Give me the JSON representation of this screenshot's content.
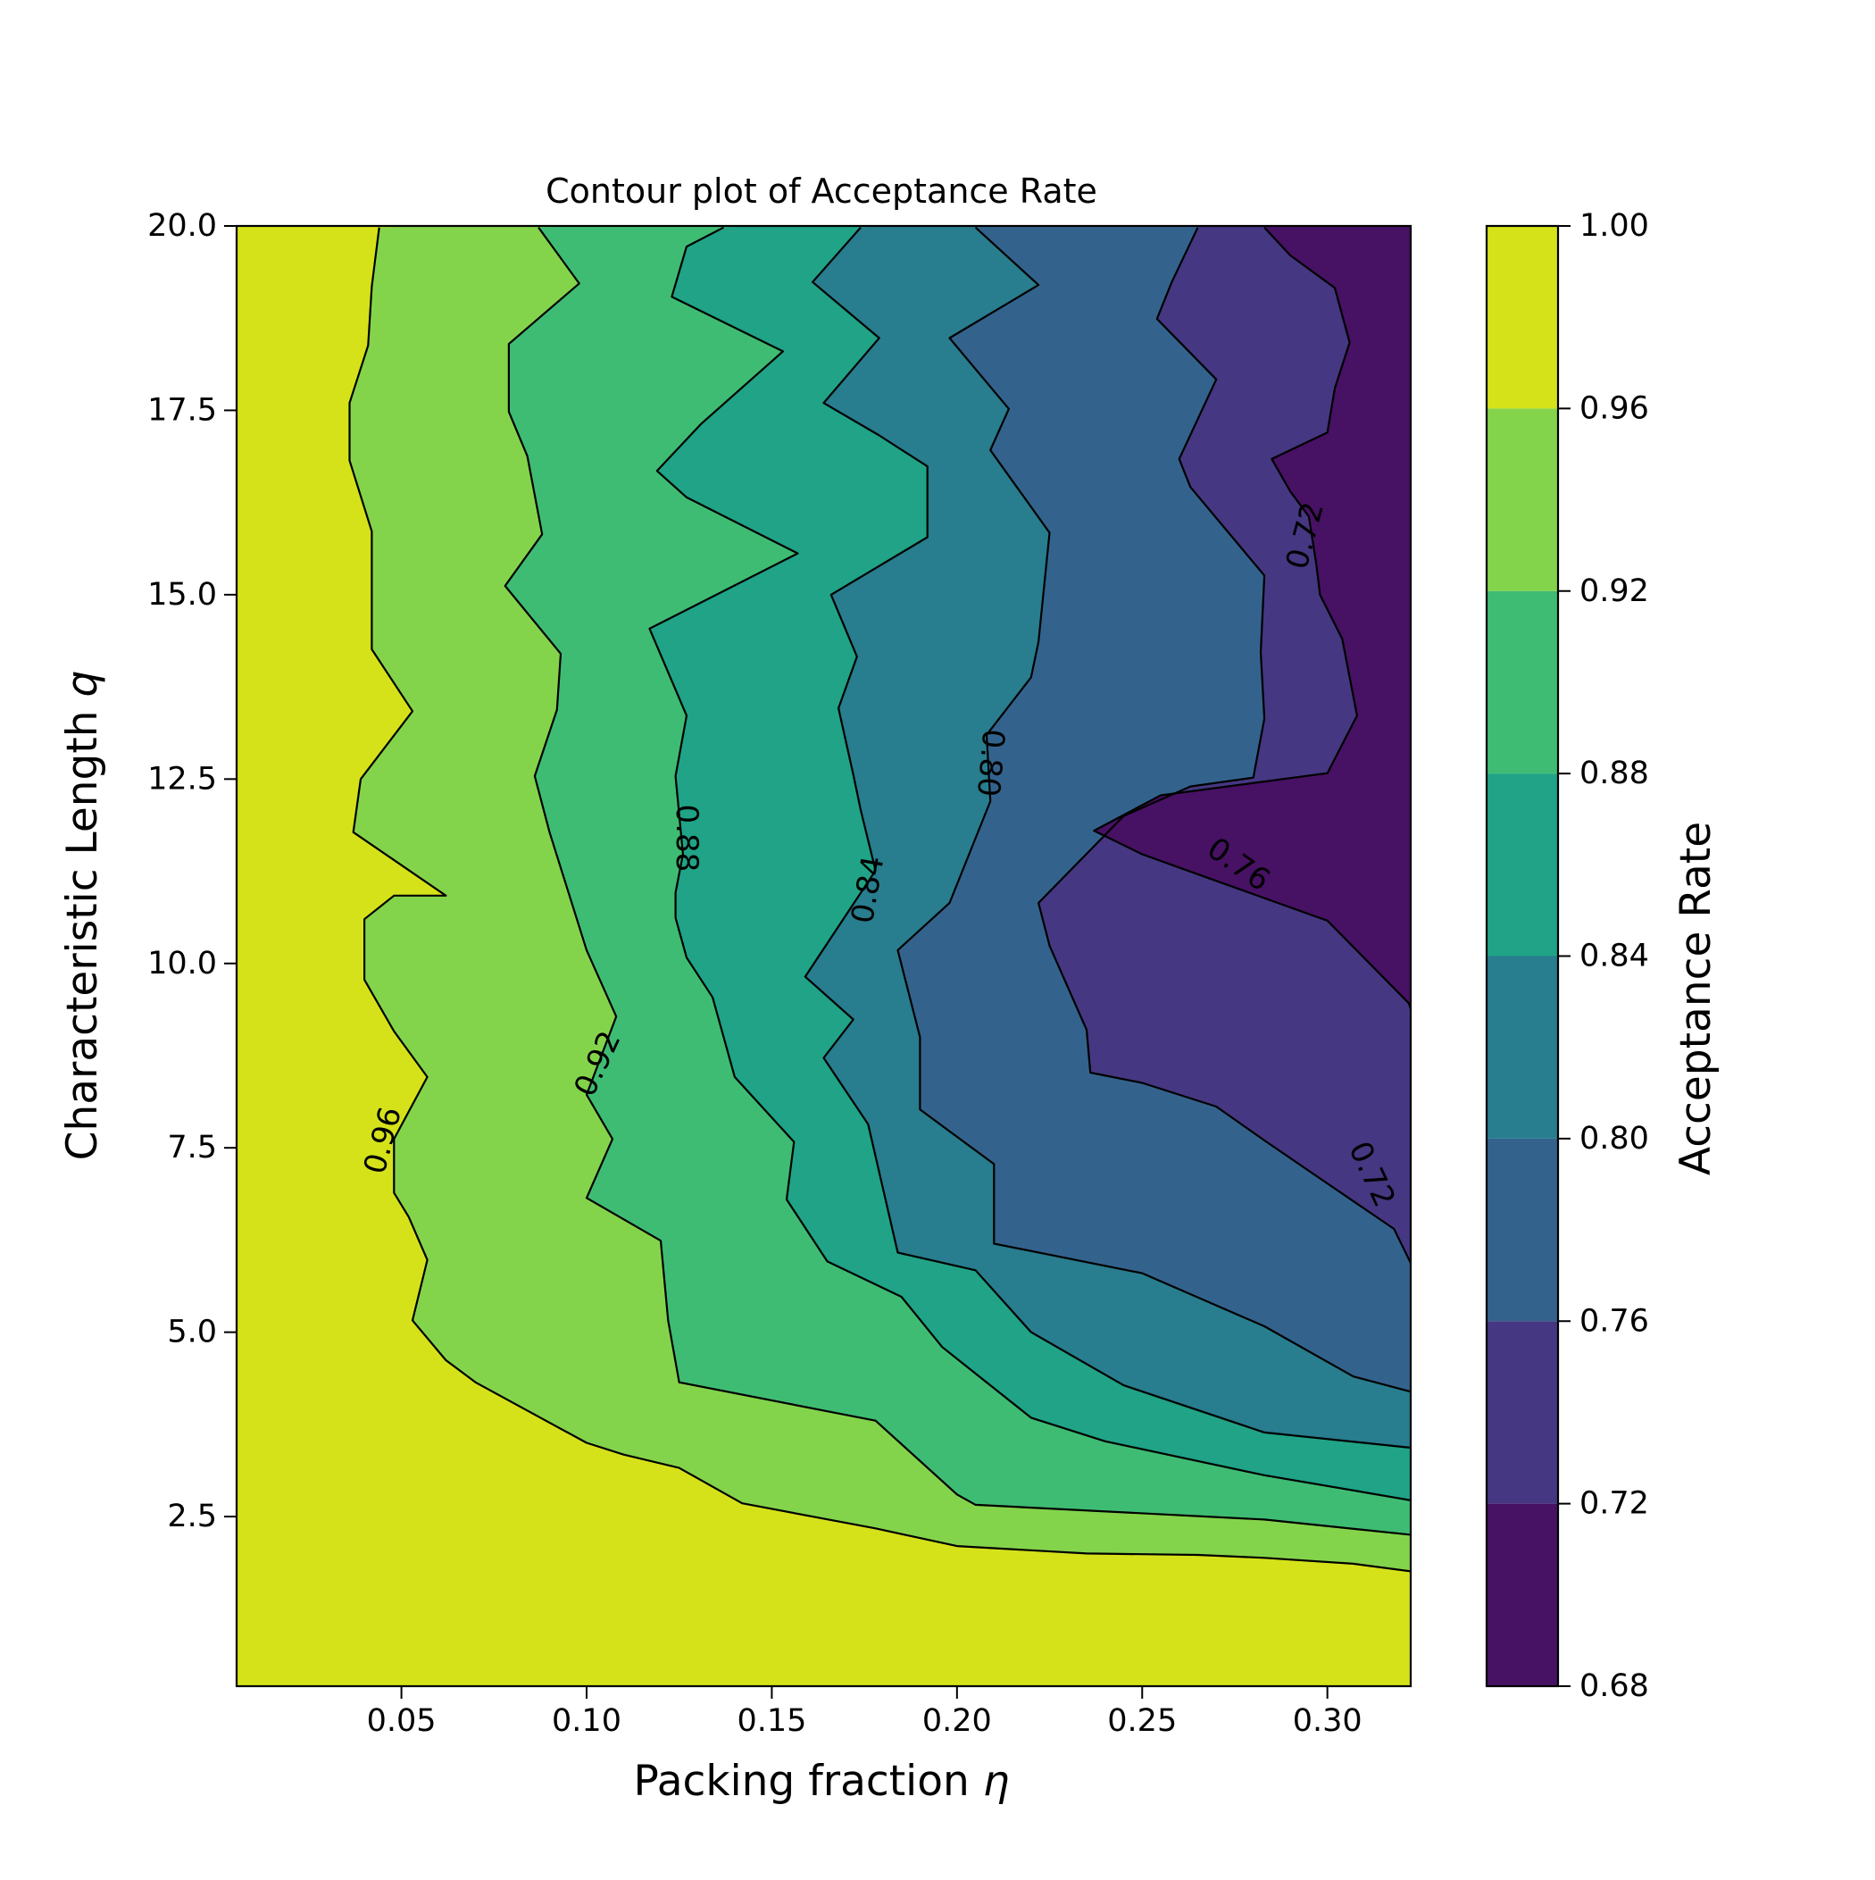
{
  "chart_data": {
    "type": "contourf",
    "title": "Contour plot of Acceptance Rate",
    "xlabel_text": "Packing fraction",
    "xlabel_symbol": "η",
    "ylabel_text": "Characteristic Length",
    "ylabel_symbol": "q",
    "xlim": [
      0.0055,
      0.3225
    ],
    "ylim": [
      0.2,
      20.0
    ],
    "x_ticks": [
      0.05,
      0.1,
      0.15,
      0.2,
      0.25,
      0.3
    ],
    "x_tick_labels": [
      "0.05",
      "0.10",
      "0.15",
      "0.20",
      "0.25",
      "0.30"
    ],
    "y_ticks": [
      2.5,
      5.0,
      7.5,
      10.0,
      12.5,
      15.0,
      17.5,
      20.0
    ],
    "y_tick_labels": [
      "2.5",
      "5.0",
      "7.5",
      "10.0",
      "12.5",
      "15.0",
      "17.5",
      "20.0"
    ],
    "colorbar": {
      "label": "Acceptance Rate",
      "levels": [
        0.68,
        0.72,
        0.76,
        0.8,
        0.84,
        0.88,
        0.92,
        0.96,
        1.0
      ],
      "tick_labels": [
        "0.68",
        "0.72",
        "0.76",
        "0.80",
        "0.84",
        "0.88",
        "0.92",
        "0.96",
        "1.00"
      ],
      "colors": [
        "#471164",
        "#453781",
        "#33638d",
        "#287d8e",
        "#20a386",
        "#3fbc73",
        "#84d44b",
        "#d5e21a"
      ]
    },
    "contour_lines": [
      {
        "level": 0.96,
        "points": [
          [
            0.325,
            1.74
          ],
          [
            0.307,
            1.86
          ],
          [
            0.283,
            1.94
          ],
          [
            0.265,
            1.98
          ],
          [
            0.235,
            2.0
          ],
          [
            0.2,
            2.1
          ],
          [
            0.178,
            2.34
          ],
          [
            0.142,
            2.68
          ],
          [
            0.125,
            3.16
          ],
          [
            0.11,
            3.34
          ],
          [
            0.1,
            3.5
          ],
          [
            0.07,
            4.32
          ],
          [
            0.062,
            4.62
          ],
          [
            0.053,
            5.16
          ],
          [
            0.057,
            5.98
          ],
          [
            0.052,
            6.56
          ],
          [
            0.048,
            6.89
          ],
          [
            0.048,
            7.62
          ],
          [
            0.057,
            8.46
          ],
          [
            0.048,
            9.08
          ],
          [
            0.04,
            9.78
          ],
          [
            0.04,
            10.6
          ],
          [
            0.048,
            10.92
          ],
          [
            0.062,
            10.92
          ],
          [
            0.037,
            11.78
          ],
          [
            0.039,
            12.5
          ],
          [
            0.053,
            13.42
          ],
          [
            0.042,
            14.26
          ],
          [
            0.042,
            15.0
          ],
          [
            0.042,
            15.86
          ],
          [
            0.036,
            16.82
          ],
          [
            0.036,
            17.6
          ],
          [
            0.041,
            18.38
          ],
          [
            0.042,
            19.18
          ],
          [
            0.044,
            19.98
          ]
        ]
      },
      {
        "level": 0.92,
        "points": [
          [
            0.325,
            2.24
          ],
          [
            0.283,
            2.46
          ],
          [
            0.205,
            2.66
          ],
          [
            0.2,
            2.8
          ],
          [
            0.178,
            3.8
          ],
          [
            0.125,
            4.32
          ],
          [
            0.122,
            5.16
          ],
          [
            0.12,
            6.24
          ],
          [
            0.1,
            6.82
          ],
          [
            0.107,
            7.62
          ],
          [
            0.1,
            8.22
          ],
          [
            0.108,
            9.28
          ],
          [
            0.1,
            10.18
          ],
          [
            0.09,
            11.78
          ],
          [
            0.086,
            12.54
          ],
          [
            0.092,
            13.44
          ],
          [
            0.093,
            14.2
          ],
          [
            0.078,
            15.12
          ],
          [
            0.088,
            15.82
          ],
          [
            0.084,
            16.88
          ],
          [
            0.079,
            17.48
          ],
          [
            0.079,
            18.4
          ],
          [
            0.098,
            19.22
          ],
          [
            0.087,
            19.98
          ]
        ]
      },
      {
        "level": 0.88,
        "points": [
          [
            0.325,
            2.7
          ],
          [
            0.283,
            3.06
          ],
          [
            0.24,
            3.52
          ],
          [
            0.22,
            3.84
          ],
          [
            0.196,
            4.8
          ],
          [
            0.185,
            5.48
          ],
          [
            0.165,
            5.96
          ],
          [
            0.154,
            6.8
          ],
          [
            0.156,
            7.58
          ],
          [
            0.14,
            8.46
          ],
          [
            0.134,
            9.54
          ],
          [
            0.127,
            10.08
          ],
          [
            0.124,
            10.62
          ],
          [
            0.124,
            10.96
          ],
          [
            0.126,
            11.48
          ],
          [
            0.124,
            12.54
          ],
          [
            0.127,
            13.36
          ],
          [
            0.117,
            14.54
          ],
          [
            0.157,
            15.56
          ],
          [
            0.127,
            16.32
          ],
          [
            0.119,
            16.68
          ],
          [
            0.131,
            17.32
          ],
          [
            0.153,
            18.3
          ],
          [
            0.123,
            19.04
          ],
          [
            0.127,
            19.72
          ],
          [
            0.137,
            19.98
          ]
        ]
      },
      {
        "level": 0.84,
        "points": [
          [
            0.325,
            3.42
          ],
          [
            0.283,
            3.64
          ],
          [
            0.245,
            4.28
          ],
          [
            0.22,
            5.0
          ],
          [
            0.205,
            5.84
          ],
          [
            0.184,
            6.08
          ],
          [
            0.176,
            7.82
          ],
          [
            0.164,
            8.72
          ],
          [
            0.172,
            9.24
          ],
          [
            0.159,
            9.82
          ],
          [
            0.178,
            11.26
          ],
          [
            0.174,
            12.08
          ],
          [
            0.172,
            12.56
          ],
          [
            0.168,
            13.46
          ],
          [
            0.173,
            14.16
          ],
          [
            0.166,
            15.0
          ],
          [
            0.192,
            15.78
          ],
          [
            0.192,
            16.74
          ],
          [
            0.179,
            17.16
          ],
          [
            0.164,
            17.6
          ],
          [
            0.179,
            18.48
          ],
          [
            0.161,
            19.24
          ],
          [
            0.174,
            19.98
          ]
        ]
      },
      {
        "level": 0.8,
        "points": [
          [
            0.325,
            4.16
          ],
          [
            0.307,
            4.4
          ],
          [
            0.283,
            5.08
          ],
          [
            0.25,
            5.8
          ],
          [
            0.21,
            6.2
          ],
          [
            0.21,
            7.28
          ],
          [
            0.19,
            8.02
          ],
          [
            0.19,
            9.0
          ],
          [
            0.184,
            10.18
          ],
          [
            0.198,
            10.82
          ],
          [
            0.209,
            12.2
          ],
          [
            0.208,
            13.1
          ],
          [
            0.22,
            13.88
          ],
          [
            0.222,
            14.36
          ],
          [
            0.225,
            15.84
          ],
          [
            0.209,
            16.96
          ],
          [
            0.214,
            17.52
          ],
          [
            0.198,
            18.48
          ],
          [
            0.222,
            19.2
          ],
          [
            0.205,
            19.98
          ]
        ]
      },
      {
        "level": 0.76,
        "points": [
          [
            0.325,
            5.68
          ],
          [
            0.318,
            6.4
          ],
          [
            0.297,
            7.12
          ],
          [
            0.283,
            7.6
          ],
          [
            0.27,
            8.06
          ],
          [
            0.25,
            8.38
          ],
          [
            0.236,
            8.52
          ],
          [
            0.235,
            9.1
          ],
          [
            0.225,
            10.24
          ],
          [
            0.222,
            10.82
          ],
          [
            0.245,
            12.0
          ],
          [
            0.263,
            12.4
          ],
          [
            0.28,
            12.52
          ],
          [
            0.283,
            13.32
          ],
          [
            0.282,
            14.22
          ],
          [
            0.283,
            15.26
          ],
          [
            0.263,
            16.46
          ],
          [
            0.26,
            16.84
          ],
          [
            0.27,
            17.92
          ],
          [
            0.254,
            18.74
          ],
          [
            0.258,
            19.24
          ],
          [
            0.265,
            19.98
          ]
        ]
      },
      {
        "level": 0.72,
        "points": [
          [
            0.325,
            9.0
          ],
          [
            0.322,
            9.46
          ],
          [
            0.3,
            10.58
          ],
          [
            0.27,
            11.12
          ],
          [
            0.25,
            11.48
          ],
          [
            0.237,
            11.8
          ],
          [
            0.255,
            12.28
          ],
          [
            0.3,
            12.58
          ],
          [
            0.308,
            13.36
          ],
          [
            0.304,
            14.4
          ],
          [
            0.298,
            15.0
          ],
          [
            0.297,
            15.42
          ],
          [
            0.295,
            16.06
          ],
          [
            0.29,
            16.4
          ],
          [
            0.285,
            16.84
          ],
          [
            0.3,
            17.2
          ],
          [
            0.302,
            17.8
          ],
          [
            0.306,
            18.42
          ],
          [
            0.302,
            19.16
          ],
          [
            0.29,
            19.6
          ],
          [
            0.283,
            19.98
          ]
        ]
      }
    ],
    "contour_labels": [
      {
        "text": "0.96",
        "x": 0.045,
        "y": 7.6,
        "angle": -75
      },
      {
        "text": "0.92",
        "x": 0.103,
        "y": 8.64,
        "angle": -65
      },
      {
        "text": "0.88",
        "x": 0.127,
        "y": 11.7,
        "angle": 90
      },
      {
        "text": "0.84",
        "x": 0.176,
        "y": 11.0,
        "angle": -80
      },
      {
        "text": "0.80",
        "x": 0.209,
        "y": 12.72,
        "angle": 95
      },
      {
        "text": "0.76",
        "x": 0.276,
        "y": 11.34,
        "angle": 35
      },
      {
        "text": "0.72",
        "x": 0.294,
        "y": 15.8,
        "angle": -75
      },
      {
        "text": "0.72",
        "x": 0.312,
        "y": 7.14,
        "angle": 65
      }
    ]
  }
}
